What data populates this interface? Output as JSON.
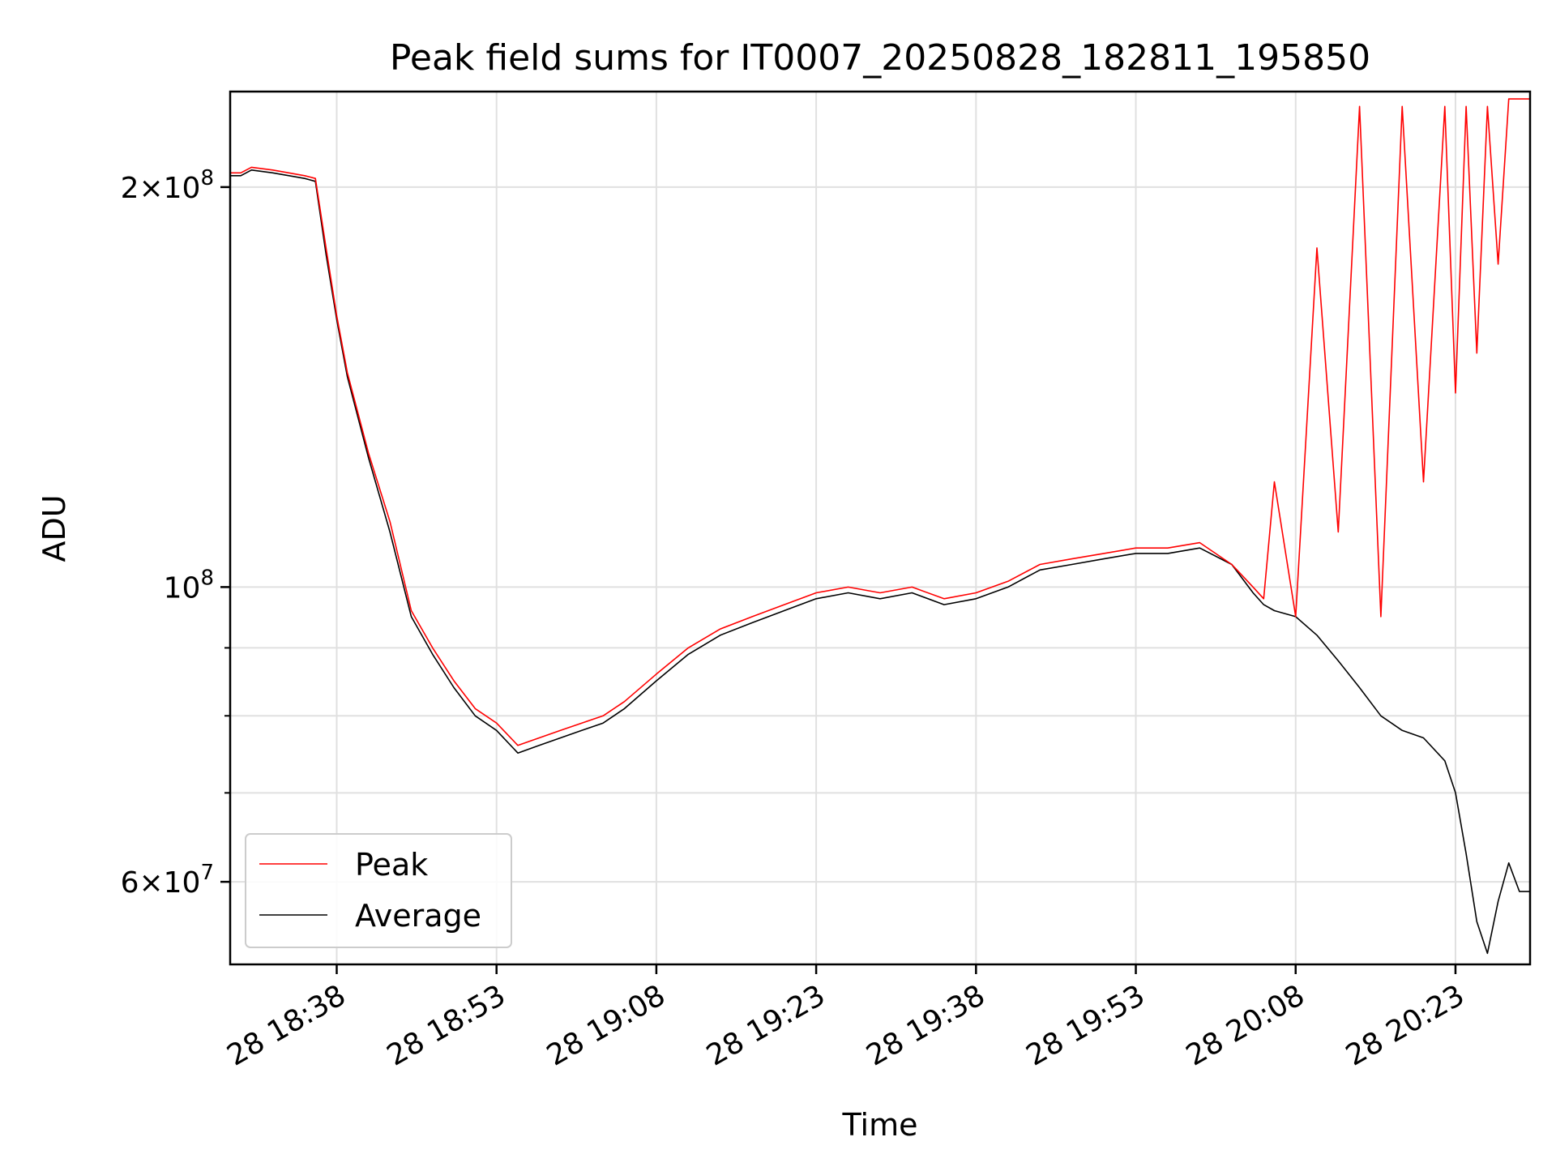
{
  "chart_data": {
    "type": "line",
    "title": "Peak field sums for IT0007_20250828_182811_195850",
    "xlabel": "Time",
    "ylabel": "ADU",
    "x_range": [
      "2025-08-28 18:28",
      "2025-08-28 20:30"
    ],
    "ylim": [
      52000000,
      236000000
    ],
    "y_scale": "log",
    "grid": true,
    "legend_position": "lower-left",
    "x_ticks": [
      {
        "time": "18:38",
        "label": "28 18:38"
      },
      {
        "time": "18:53",
        "label": "28 18:53"
      },
      {
        "time": "19:08",
        "label": "28 19:08"
      },
      {
        "time": "19:23",
        "label": "28 19:23"
      },
      {
        "time": "19:38",
        "label": "28 19:38"
      },
      {
        "time": "19:53",
        "label": "28 19:53"
      },
      {
        "time": "20:08",
        "label": "28 20:08"
      },
      {
        "time": "20:23",
        "label": "28 20:23"
      }
    ],
    "y_ticks": [
      {
        "value": 200000000,
        "mantissa": "2",
        "exponent": "8"
      },
      {
        "value": 100000000,
        "mantissa": "",
        "exponent": "8"
      },
      {
        "value": 60000000,
        "mantissa": "6",
        "exponent": "7"
      }
    ],
    "y_minor_ticks": [
      70000000,
      80000000,
      90000000,
      300000000
    ],
    "x": [
      "18:28",
      "18:29",
      "18:30",
      "18:32",
      "18:35",
      "18:36",
      "18:37",
      "18:38",
      "18:39",
      "18:41",
      "18:43",
      "18:45",
      "18:47",
      "18:49",
      "18:51",
      "18:53",
      "18:55",
      "18:57",
      "18:59",
      "19:01",
      "19:03",
      "19:05",
      "19:08",
      "19:11",
      "19:14",
      "19:17",
      "19:20",
      "19:23",
      "19:26",
      "19:29",
      "19:32",
      "19:35",
      "19:38",
      "19:41",
      "19:44",
      "19:47",
      "19:50",
      "19:53",
      "19:56",
      "19:59",
      "20:02",
      "20:04",
      "20:05",
      "20:06",
      "20:08",
      "20:10",
      "20:12",
      "20:14",
      "20:16",
      "20:18",
      "20:20",
      "20:22",
      "20:23",
      "20:24",
      "20:25",
      "20:26",
      "20:27",
      "20:28",
      "20:29",
      "20:30"
    ],
    "series": [
      {
        "name": "Peak",
        "color": "#ff0000",
        "values": [
          205000000,
          205000000,
          207000000,
          206000000,
          204000000,
          203000000,
          180000000,
          160000000,
          145000000,
          126000000,
          112000000,
          96000000,
          90000000,
          85000000,
          81000000,
          79000000,
          76000000,
          77000000,
          78000000,
          79000000,
          80000000,
          82000000,
          86000000,
          90000000,
          93000000,
          95000000,
          97000000,
          99000000,
          100000000,
          99000000,
          100000000,
          98000000,
          99000000,
          101000000,
          104000000,
          105000000,
          106000000,
          107000000,
          107000000,
          108000000,
          104000000,
          100000000,
          98000000,
          120000000,
          95000000,
          180000000,
          110000000,
          230000000,
          95000000,
          230000000,
          120000000,
          230000000,
          140000000,
          230000000,
          150000000,
          230000000,
          175000000,
          233000000,
          233000000,
          233000000
        ]
      },
      {
        "name": "Average",
        "color": "#000000",
        "values": [
          204000000,
          204000000,
          206000000,
          205000000,
          203000000,
          202000000,
          178000000,
          159000000,
          144000000,
          125000000,
          110000000,
          95000000,
          89000000,
          84000000,
          80000000,
          78000000,
          75000000,
          76000000,
          77000000,
          78000000,
          79000000,
          81000000,
          85000000,
          89000000,
          92000000,
          94000000,
          96000000,
          98000000,
          99000000,
          98000000,
          99000000,
          97000000,
          98000000,
          100000000,
          103000000,
          104000000,
          105000000,
          106000000,
          106000000,
          107000000,
          104000000,
          99000000,
          97000000,
          96000000,
          95000000,
          92000000,
          88000000,
          84000000,
          80000000,
          78000000,
          77000000,
          74000000,
          70000000,
          63000000,
          56000000,
          53000000,
          58000000,
          62000000,
          59000000,
          59000000
        ]
      }
    ]
  }
}
